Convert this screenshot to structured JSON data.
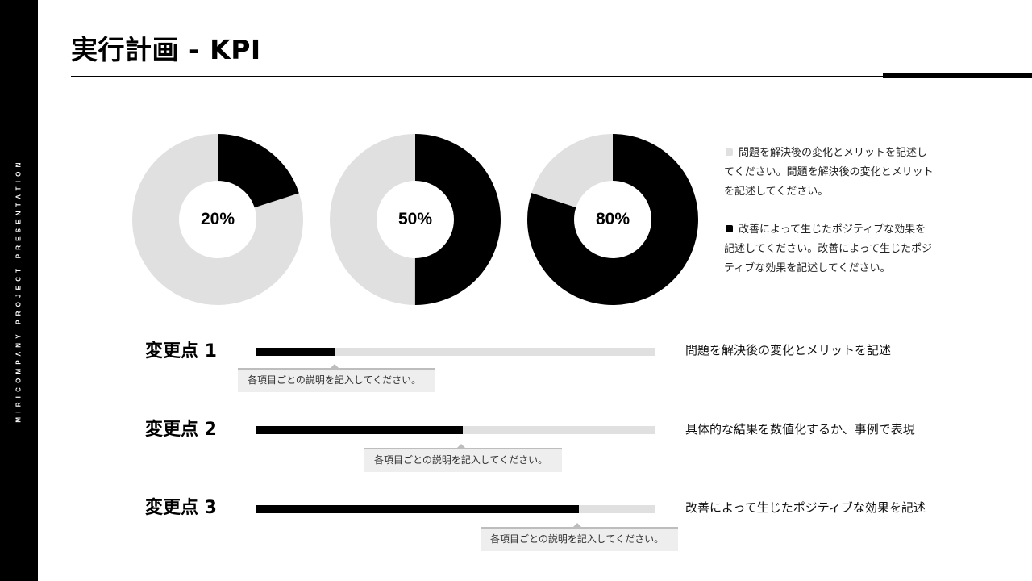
{
  "sidebar": {
    "text": "MIRICOMPANY PROJECT PRESENTATION"
  },
  "header": {
    "title": "実行計画 - KPI"
  },
  "colors": {
    "accent": "#000000",
    "muted": "#e0e0e0",
    "background": "#ffffff"
  },
  "donuts": [
    {
      "label": "20%",
      "value": 0.2
    },
    {
      "label": "50%",
      "value": 0.5
    },
    {
      "label": "80%",
      "value": 0.8
    }
  ],
  "legend": [
    {
      "swatch": "muted",
      "text": "問題を解決後の変化とメリットを記述してください。問題を解決後の変化とメリットを記述してください。"
    },
    {
      "swatch": "accent",
      "text": "改善によって生じたポジティブな効果を記述してください。改善によって生じたポジティブな効果を記述してください。"
    }
  ],
  "kpis": [
    {
      "label": "変更点 1",
      "progress": 0.2,
      "tooltip": "各項目ごとの説明を記入してください。",
      "description": "問題を解決後の変化とメリットを記述"
    },
    {
      "label": "変更点 2",
      "progress": 0.52,
      "tooltip": "各項目ごとの説明を記入してください。",
      "description": "具体的な結果を数値化するか、事例で表現"
    },
    {
      "label": "変更点 3",
      "progress": 0.81,
      "tooltip": "各項目ごとの説明を記入してください。",
      "description": "改善によって生じたポジティブな効果を記述"
    }
  ]
}
